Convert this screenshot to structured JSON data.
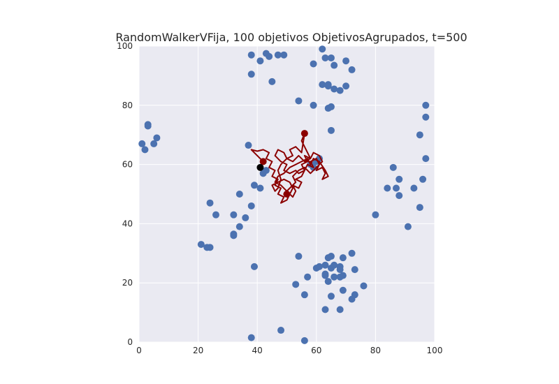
{
  "chart_data": {
    "type": "scatter",
    "title": "RandomWalkerVFija, 100 objetivos ObjetivosAgrupados, t=500",
    "xlabel": "",
    "ylabel": "",
    "xlim": [
      0,
      100
    ],
    "ylim": [
      0,
      100
    ],
    "xticks": [
      "0",
      "20",
      "40",
      "60",
      "80",
      "100"
    ],
    "yticks": [
      "0",
      "20",
      "40",
      "60",
      "80",
      "100"
    ],
    "grid": true,
    "colors": {
      "background": "#eaeaf2",
      "grid": "#ffffff",
      "targets": "#4c72b0",
      "walk": "#8b0000",
      "walker": "#000000"
    },
    "targets": [
      [
        1,
        67
      ],
      [
        2,
        65
      ],
      [
        3,
        73.5
      ],
      [
        3,
        73
      ],
      [
        5,
        67
      ],
      [
        6,
        69
      ],
      [
        38,
        97
      ],
      [
        41,
        95
      ],
      [
        43,
        97.5
      ],
      [
        44,
        96.5
      ],
      [
        47,
        97
      ],
      [
        49,
        97
      ],
      [
        38,
        90.5
      ],
      [
        45,
        88
      ],
      [
        62,
        99
      ],
      [
        63,
        96
      ],
      [
        65,
        96
      ],
      [
        59,
        94
      ],
      [
        66,
        93.5
      ],
      [
        70,
        95
      ],
      [
        72,
        92
      ],
      [
        62,
        87
      ],
      [
        64,
        86.5
      ],
      [
        64,
        87
      ],
      [
        66,
        85.5
      ],
      [
        68,
        85
      ],
      [
        70,
        86.5
      ],
      [
        54,
        81.5
      ],
      [
        59,
        80
      ],
      [
        64,
        79
      ],
      [
        65,
        79.5
      ],
      [
        65,
        71.5
      ],
      [
        97,
        80
      ],
      [
        97,
        76
      ],
      [
        95,
        70
      ],
      [
        97,
        62
      ],
      [
        86,
        59
      ],
      [
        88,
        55
      ],
      [
        96,
        55
      ],
      [
        84,
        52
      ],
      [
        87,
        52
      ],
      [
        93,
        52
      ],
      [
        88,
        49.5
      ],
      [
        95,
        45.5
      ],
      [
        80,
        43
      ],
      [
        91,
        39
      ],
      [
        37,
        66.5
      ],
      [
        43,
        58
      ],
      [
        39,
        53
      ],
      [
        41,
        52
      ],
      [
        34,
        50
      ],
      [
        38,
        46
      ],
      [
        24,
        47
      ],
      [
        26,
        43
      ],
      [
        32,
        43
      ],
      [
        36,
        42
      ],
      [
        34,
        39
      ],
      [
        32,
        36.5
      ],
      [
        32,
        36
      ],
      [
        21,
        33
      ],
      [
        23,
        32
      ],
      [
        24,
        32
      ],
      [
        54,
        29
      ],
      [
        65,
        29
      ],
      [
        64,
        28.5
      ],
      [
        69,
        28.5
      ],
      [
        72,
        30
      ],
      [
        63,
        26
      ],
      [
        66,
        26
      ],
      [
        60,
        25
      ],
      [
        61,
        25.5
      ],
      [
        65,
        25
      ],
      [
        68,
        25.5
      ],
      [
        68,
        24.5
      ],
      [
        73,
        24.5
      ],
      [
        39,
        25.5
      ],
      [
        63,
        23
      ],
      [
        63,
        22.5
      ],
      [
        66,
        22
      ],
      [
        68,
        22
      ],
      [
        69,
        22.5
      ],
      [
        57,
        22
      ],
      [
        64,
        20.5
      ],
      [
        53,
        19.5
      ],
      [
        69,
        17.5
      ],
      [
        76,
        19
      ],
      [
        56,
        16
      ],
      [
        65,
        15.5
      ],
      [
        73,
        16
      ],
      [
        72,
        14.5
      ],
      [
        63,
        11
      ],
      [
        68,
        11
      ],
      [
        48,
        4
      ],
      [
        38,
        1.5
      ],
      [
        56,
        0.5
      ],
      [
        42,
        57
      ],
      [
        60,
        61
      ],
      [
        58,
        60
      ],
      [
        59,
        59
      ],
      [
        61,
        62
      ]
    ],
    "walk_points": [
      [
        41,
        59
      ],
      [
        42,
        61
      ],
      [
        40,
        63
      ],
      [
        38,
        65
      ],
      [
        40,
        64.5
      ],
      [
        42,
        65
      ],
      [
        44,
        64
      ],
      [
        43,
        62
      ],
      [
        45,
        61
      ],
      [
        44,
        59
      ],
      [
        46,
        58
      ],
      [
        45,
        56
      ],
      [
        47,
        55
      ],
      [
        46,
        53
      ],
      [
        48,
        52
      ],
      [
        47,
        50
      ],
      [
        49,
        49
      ],
      [
        48,
        47
      ],
      [
        50,
        48
      ],
      [
        51,
        50
      ],
      [
        52,
        49
      ],
      [
        53,
        51
      ],
      [
        52,
        53
      ],
      [
        54,
        52
      ],
      [
        55,
        54
      ],
      [
        53,
        55
      ],
      [
        55,
        56
      ],
      [
        56,
        58
      ],
      [
        55,
        60
      ],
      [
        57,
        61
      ],
      [
        56,
        63
      ],
      [
        58,
        62
      ],
      [
        57,
        64
      ],
      [
        56,
        66
      ],
      [
        55,
        68
      ],
      [
        56,
        70.5
      ],
      [
        55,
        64
      ],
      [
        53,
        66
      ],
      [
        51,
        65
      ],
      [
        52,
        63
      ],
      [
        50,
        62
      ],
      [
        49,
        64
      ],
      [
        47,
        65
      ],
      [
        46,
        63
      ],
      [
        48,
        61
      ],
      [
        50,
        60
      ],
      [
        49,
        58
      ],
      [
        51,
        57
      ],
      [
        53,
        58
      ],
      [
        54,
        57
      ],
      [
        56,
        58
      ],
      [
        57,
        60
      ],
      [
        59,
        59
      ],
      [
        58,
        61
      ],
      [
        60,
        62
      ],
      [
        61,
        60
      ],
      [
        60,
        58
      ],
      [
        62,
        59
      ],
      [
        63,
        57
      ],
      [
        62,
        55
      ],
      [
        64,
        56
      ],
      [
        63,
        58
      ],
      [
        61,
        61
      ],
      [
        59,
        62
      ],
      [
        58,
        60
      ],
      [
        57,
        62
      ],
      [
        55,
        61
      ],
      [
        53,
        60
      ],
      [
        51,
        59
      ],
      [
        49,
        57
      ],
      [
        47,
        56
      ],
      [
        46,
        54
      ],
      [
        48,
        53
      ],
      [
        50,
        51
      ],
      [
        49,
        50
      ],
      [
        51,
        52
      ],
      [
        53,
        54
      ],
      [
        52,
        56
      ],
      [
        54,
        58
      ],
      [
        56,
        59
      ],
      [
        58,
        57
      ],
      [
        60,
        59
      ],
      [
        62,
        61
      ],
      [
        61,
        63
      ],
      [
        59,
        64
      ],
      [
        58,
        62
      ],
      [
        56,
        61
      ],
      [
        54,
        63
      ],
      [
        52,
        61
      ],
      [
        50,
        62
      ],
      [
        48,
        60
      ],
      [
        47,
        58
      ],
      [
        48,
        55
      ],
      [
        47,
        52
      ],
      [
        46,
        51
      ],
      [
        45,
        53
      ],
      [
        47,
        54
      ],
      [
        49,
        55
      ],
      [
        51,
        54
      ],
      [
        52,
        52
      ],
      [
        51,
        50
      ],
      [
        50,
        49
      ]
    ],
    "walk_markers": [
      [
        56,
        70.5
      ],
      [
        42,
        61
      ],
      [
        50,
        50
      ]
    ],
    "walker": [
      41,
      59
    ]
  }
}
